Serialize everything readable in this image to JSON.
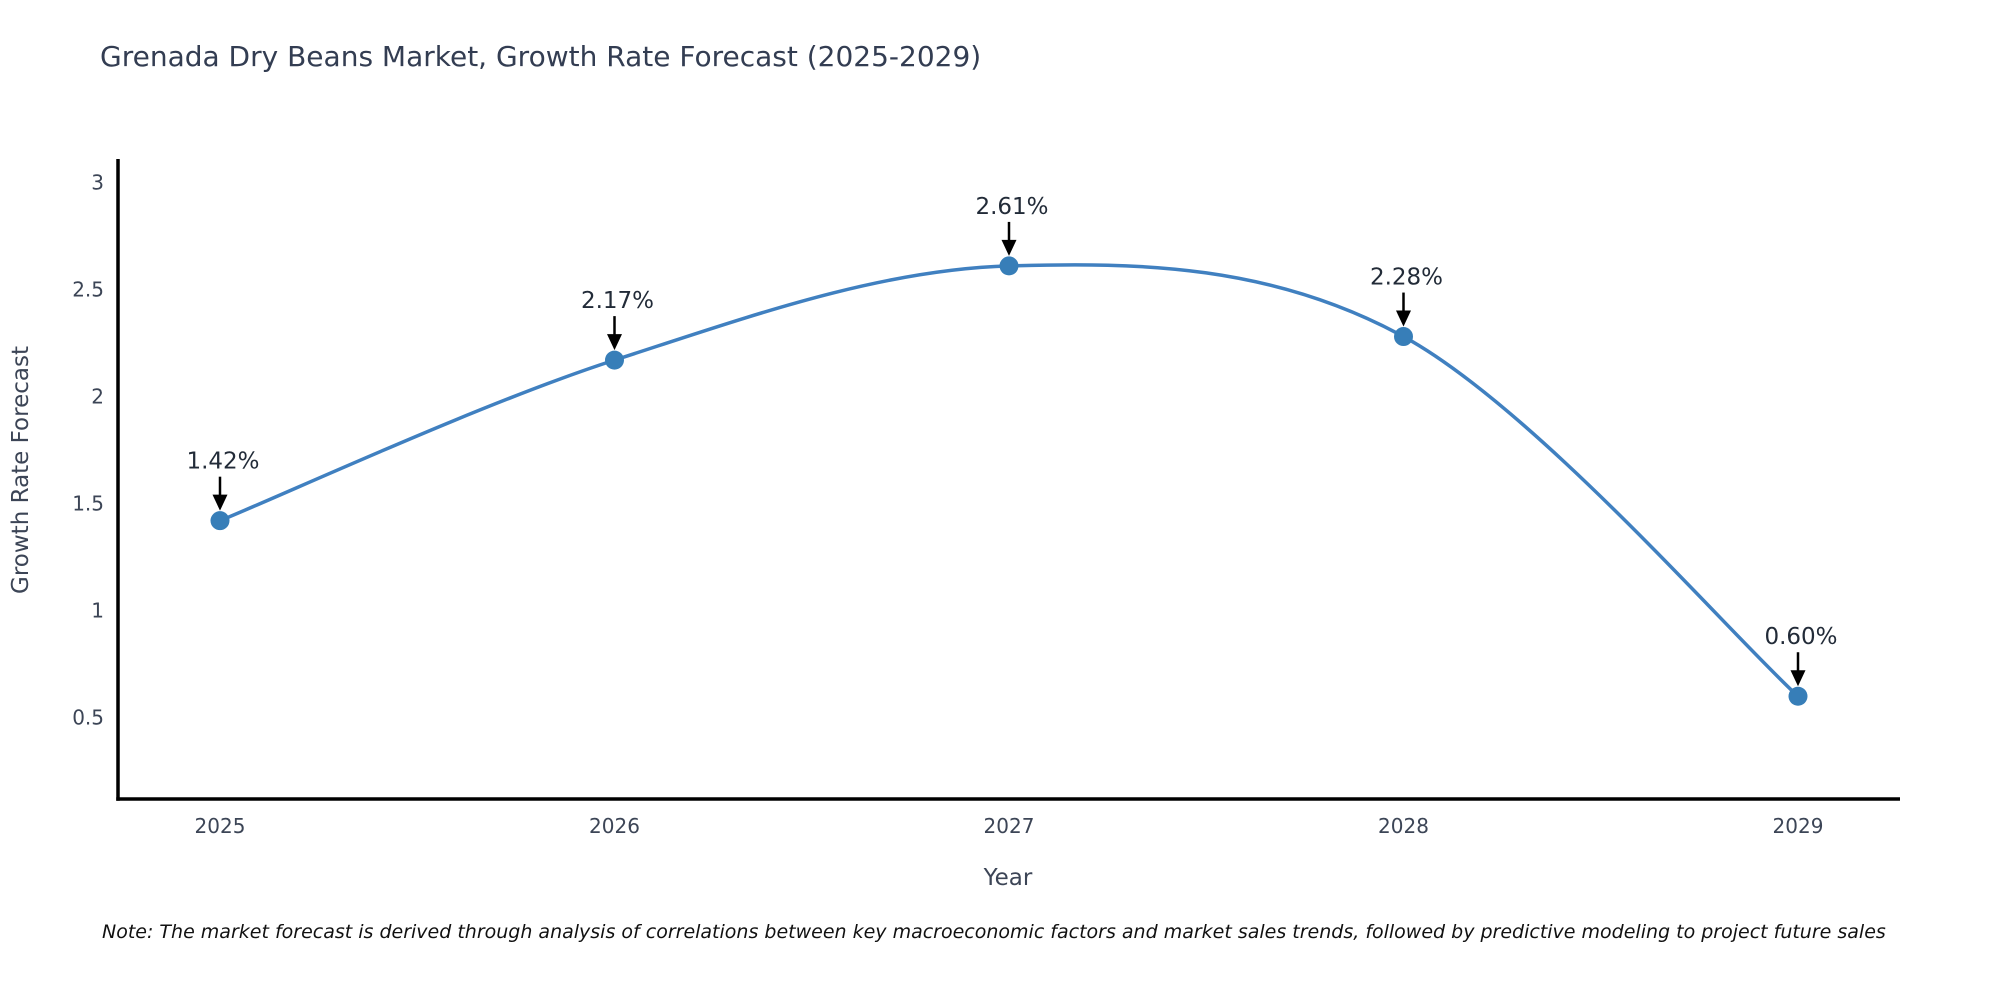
{
  "title": "Grenada Dry Beans Market, Growth Rate Forecast (2025-2029)",
  "note": "Note: The market forecast is derived through analysis of correlations between key macroeconomic factors and market sales trends, followed by predictive modeling to project future sales",
  "chart_data": {
    "type": "line",
    "title": "Grenada Dry Beans Market, Growth Rate Forecast (2025-2029)",
    "xlabel": "Year",
    "ylabel": "Growth Rate Forecast",
    "categories": [
      "2025",
      "2026",
      "2027",
      "2028",
      "2029"
    ],
    "x": [
      2025,
      2026,
      2027,
      2028,
      2029
    ],
    "series": [
      {
        "name": "Growth Rate Forecast",
        "values": [
          1.42,
          2.17,
          2.61,
          2.28,
          0.6
        ]
      }
    ],
    "point_labels": [
      "1.42%",
      "2.17%",
      "2.61%",
      "2.28%",
      "0.60%"
    ],
    "y_ticks": [
      0.5,
      1,
      1.5,
      2,
      2.5,
      3
    ],
    "ylim": [
      0.12,
      3.1
    ],
    "xlim": [
      2024.74,
      2029.26
    ],
    "line_shape": "spline",
    "grid": false,
    "legend_position": "none",
    "colors": {
      "line": "#4080c0",
      "marker": "#377eb8",
      "axis": "#000000",
      "arrow": "#000000",
      "title_text": "#333d52",
      "tick_text": "#3c4556",
      "annotation_text": "#222b38",
      "note_text": "#111111",
      "background": "#ffffff"
    }
  }
}
